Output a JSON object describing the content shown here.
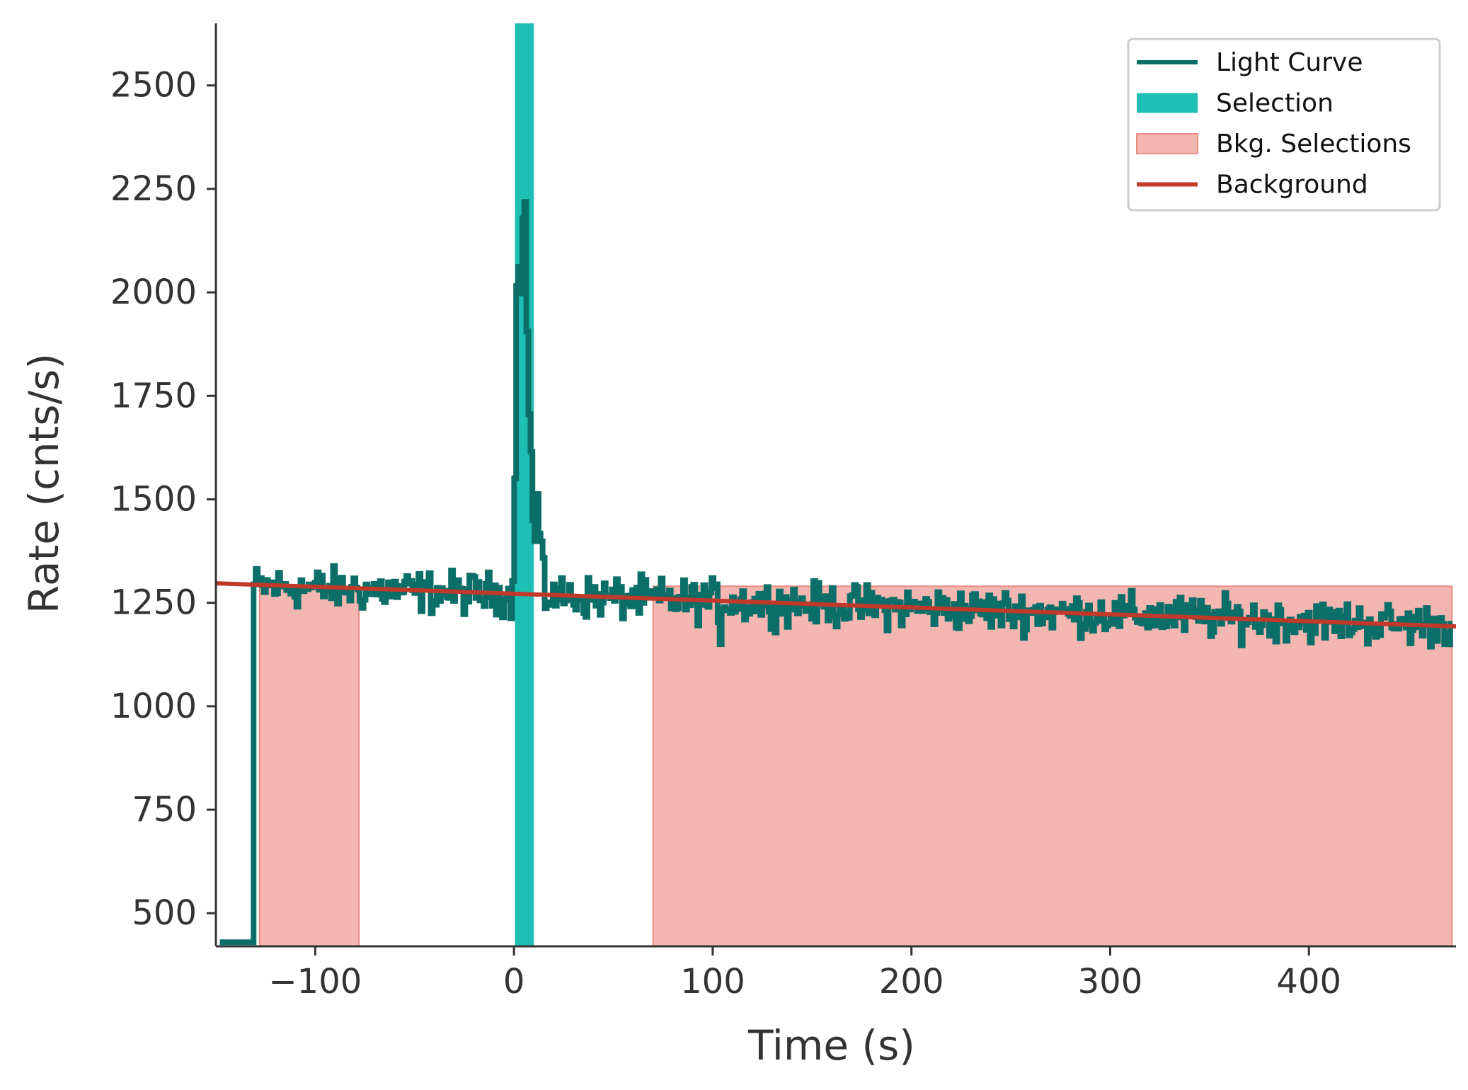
{
  "chart_data": {
    "type": "line",
    "title": "",
    "xlabel": "Time (s)",
    "ylabel": "Rate (cnts/s)",
    "xlim": [
      -150,
      474
    ],
    "ylim": [
      420,
      2650
    ],
    "grid": false,
    "legend_position": "top-right",
    "xticks": [
      -100,
      0,
      100,
      200,
      300,
      400
    ],
    "xtick_labels": [
      "−100",
      "0",
      "100",
      "200",
      "300",
      "400"
    ],
    "yticks": [
      500,
      750,
      1000,
      1250,
      1500,
      1750,
      2000,
      2250,
      2500
    ],
    "ytick_labels": [
      "500",
      "750",
      "1000",
      "1250",
      "1500",
      "1750",
      "2000",
      "2250",
      "2500"
    ],
    "legend": [
      {
        "label": "Light Curve",
        "kind": "line",
        "color": "#0b6e68"
      },
      {
        "label": "Selection",
        "kind": "patch",
        "color": "#20bfb5"
      },
      {
        "label": "Bkg. Selections",
        "kind": "patch",
        "color": "#f4b6b1",
        "edge": "#ec8a82"
      },
      {
        "label": "Background",
        "kind": "line",
        "color": "#c0392b"
      }
    ],
    "series": [
      {
        "name": "Light Curve",
        "color": "#0b6e68",
        "step_width": 1.024,
        "x_start": -131,
        "x_end": 472,
        "baseline_start": 1290,
        "baseline_end": 1195,
        "noise_amplitude": 55,
        "pre_start_value": 430,
        "peak_samples": [
          {
            "t": 0,
            "v": 1540
          },
          {
            "t": 1,
            "v": 2020
          },
          {
            "t": 2,
            "v": 2080
          },
          {
            "t": 3,
            "v": 1980
          },
          {
            "t": 4,
            "v": 2190
          },
          {
            "t": 5,
            "v": 2200
          },
          {
            "t": 6,
            "v": 1900
          },
          {
            "t": 7,
            "v": 1700
          },
          {
            "t": 8,
            "v": 1600
          },
          {
            "t": 9,
            "v": 1450
          },
          {
            "t": 10,
            "v": 1400
          },
          {
            "t": 11,
            "v": 1500
          },
          {
            "t": 12,
            "v": 1420
          },
          {
            "t": 13,
            "v": 1380
          },
          {
            "t": 14,
            "v": 1350
          }
        ],
        "dips": [
          {
            "t": 104,
            "v": 1110
          },
          {
            "t": 103,
            "v": 1150
          }
        ]
      },
      {
        "name": "Selection",
        "color": "#20bfb5",
        "x_range": [
          0.5,
          10
        ]
      },
      {
        "name": "Bkg. Selections",
        "color": "#f4b6b1",
        "ranges": [
          [
            -128,
            -78
          ],
          [
            70,
            472
          ]
        ]
      },
      {
        "name": "Background",
        "color": "#c0392b",
        "x": [
          -150,
          474
        ],
        "y": [
          1297,
          1193
        ]
      }
    ]
  }
}
